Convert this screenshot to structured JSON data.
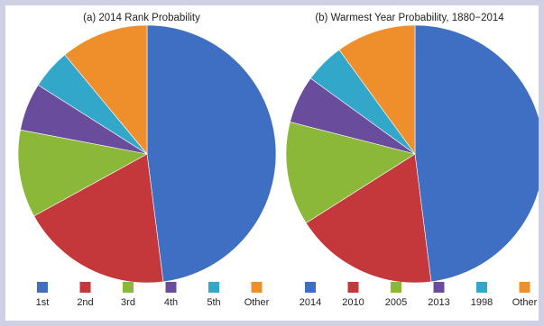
{
  "colors": {
    "page_border": "#cfcfe6",
    "panel_background": "#ffffff",
    "slice_palette": [
      "#3f6fc3",
      "#c4373a",
      "#8cb83a",
      "#6a4c9c",
      "#32a7c9",
      "#ef8f2c"
    ]
  },
  "chart_data": [
    {
      "type": "pie",
      "title": "(a) 2014 Rank Probability",
      "start": "12 o'clock",
      "direction": "clockwise",
      "legend_position": "bottom",
      "slices": [
        {
          "label": "1st",
          "value": 48,
          "color": "#3f6fc3"
        },
        {
          "label": "2nd",
          "value": 19,
          "color": "#c4373a"
        },
        {
          "label": "3rd",
          "value": 11,
          "color": "#8cb83a"
        },
        {
          "label": "4th",
          "value": 6,
          "color": "#6a4c9c"
        },
        {
          "label": "5th",
          "value": 5,
          "color": "#32a7c9"
        },
        {
          "label": "Other",
          "value": 11,
          "color": "#ef8f2c"
        }
      ]
    },
    {
      "type": "pie",
      "title": "(b) Warmest Year Probability, 1880−2014",
      "start": "12 o'clock",
      "direction": "clockwise",
      "legend_position": "bottom",
      "slices": [
        {
          "label": "2014",
          "value": 48,
          "color": "#3f6fc3"
        },
        {
          "label": "2010",
          "value": 18,
          "color": "#c4373a"
        },
        {
          "label": "2005",
          "value": 13,
          "color": "#8cb83a"
        },
        {
          "label": "2013",
          "value": 6,
          "color": "#6a4c9c"
        },
        {
          "label": "1998",
          "value": 5,
          "color": "#32a7c9"
        },
        {
          "label": "Other",
          "value": 10,
          "color": "#ef8f2c"
        }
      ]
    }
  ]
}
